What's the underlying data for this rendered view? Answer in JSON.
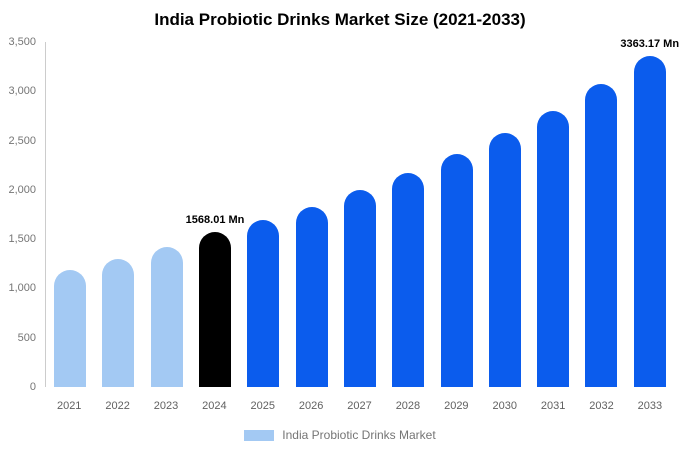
{
  "title": "India Probiotic Drinks Market Size (2021-2033)",
  "colors": {
    "historical": "#a3c9f3",
    "highlight": "#000000",
    "forecast": "#0b5ced",
    "axis_line": "#cccccc",
    "axis_text": "#757575"
  },
  "legend": {
    "label": "India Probiotic Drinks Market",
    "swatch_color": "#a3c9f3"
  },
  "chart_data": {
    "type": "bar",
    "title": "India Probiotic Drinks Market Size (2021-2033)",
    "categories": [
      "2021",
      "2022",
      "2023",
      "2024",
      "2025",
      "2026",
      "2027",
      "2028",
      "2029",
      "2030",
      "2031",
      "2032",
      "2033"
    ],
    "values": [
      1190,
      1300,
      1420,
      1568.01,
      1690,
      1830,
      2000,
      2170,
      2360,
      2580,
      2800,
      3070,
      3363.17
    ],
    "color_roles": [
      "historical",
      "historical",
      "historical",
      "highlight",
      "forecast",
      "forecast",
      "forecast",
      "forecast",
      "forecast",
      "forecast",
      "forecast",
      "forecast",
      "forecast"
    ],
    "data_labels": [
      {
        "index": 3,
        "text": "1568.01 Mn"
      },
      {
        "index": 12,
        "text": "3363.17 Mn"
      }
    ],
    "xlabel": "",
    "ylabel": "",
    "ylim": [
      0,
      3500
    ],
    "ytick_values": [
      0,
      500,
      1000,
      1500,
      2000,
      2500,
      3000,
      3500
    ],
    "ytick_labels": [
      "0",
      "500",
      "1,000",
      "1,500",
      "2,000",
      "2,500",
      "3,000",
      "3,500"
    ],
    "grid": false,
    "legend_position": "bottom",
    "legend_entries": [
      "India Probiotic Drinks Market"
    ]
  }
}
